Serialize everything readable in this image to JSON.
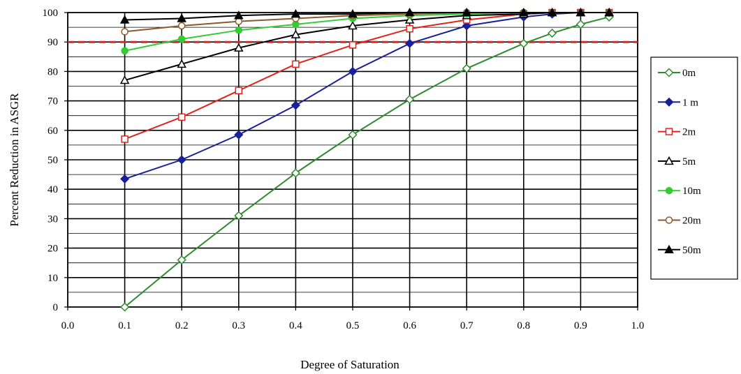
{
  "chart_data": {
    "type": "line",
    "title": "",
    "xlabel": "Degree of Saturation",
    "ylabel": "Percent Reduction in ASGR",
    "xlim": [
      0.0,
      1.0
    ],
    "ylim": [
      0,
      100
    ],
    "x_ticks": [
      "0.0",
      "0.1",
      "0.2",
      "0.3",
      "0.4",
      "0.5",
      "0.6",
      "0.7",
      "0.8",
      "0.9",
      "1.0"
    ],
    "y_ticks": [
      "0",
      "10",
      "20",
      "30",
      "40",
      "50",
      "60",
      "70",
      "80",
      "90",
      "100"
    ],
    "grid": "horizontal major and minor, vertical major",
    "legend_position": "right",
    "reference_line": {
      "y": 90,
      "color": "#e0241b",
      "style": "dashed"
    },
    "series": [
      {
        "name": "0m",
        "color": "#2e8b2e",
        "marker": "diamond-open",
        "x": [
          0.1,
          0.2,
          0.3,
          0.4,
          0.5,
          0.6,
          0.7,
          0.8,
          0.85,
          0.9,
          0.95
        ],
        "y": [
          0,
          16,
          31,
          45.5,
          58.5,
          70.5,
          81,
          89.5,
          93,
          96,
          98.5
        ]
      },
      {
        "name": "1 m",
        "color": "#1a1f9a",
        "marker": "diamond-filled",
        "x": [
          0.1,
          0.2,
          0.3,
          0.4,
          0.5,
          0.6,
          0.7,
          0.8,
          0.85,
          0.9,
          0.95
        ],
        "y": [
          43.5,
          50,
          58.5,
          68.5,
          80,
          89.5,
          95.5,
          98.5,
          99.5,
          100,
          100
        ]
      },
      {
        "name": "2m",
        "color": "#e0241b",
        "marker": "square-open",
        "x": [
          0.1,
          0.2,
          0.3,
          0.4,
          0.5,
          0.6,
          0.7,
          0.8,
          0.85,
          0.9,
          0.95
        ],
        "y": [
          57,
          64.5,
          73.5,
          82.5,
          89,
          94.5,
          97.5,
          99.5,
          100,
          100,
          100
        ]
      },
      {
        "name": "5m",
        "color": "#000000",
        "marker": "triangle-open",
        "x": [
          0.1,
          0.2,
          0.3,
          0.4,
          0.5,
          0.6,
          0.7,
          0.8,
          0.85,
          0.9,
          0.95
        ],
        "y": [
          77,
          82.5,
          88,
          92.5,
          95.5,
          97.5,
          99,
          99.5,
          100,
          100,
          100
        ]
      },
      {
        "name": "10m",
        "color": "#33cc33",
        "marker": "circle-filled",
        "x": [
          0.1,
          0.2,
          0.3,
          0.4,
          0.5,
          0.6,
          0.7,
          0.8,
          0.85,
          0.9,
          0.95
        ],
        "y": [
          87,
          91,
          94,
          96,
          98,
          99,
          99.5,
          100,
          100,
          100,
          100
        ]
      },
      {
        "name": "20m",
        "color": "#8b5a2b",
        "marker": "circle-open",
        "x": [
          0.1,
          0.2,
          0.3,
          0.4,
          0.5,
          0.6,
          0.7,
          0.8,
          0.85,
          0.9,
          0.95
        ],
        "y": [
          93.5,
          95.5,
          97,
          98,
          99,
          99.5,
          100,
          100,
          100,
          100,
          100
        ]
      },
      {
        "name": "50m",
        "color": "#000000",
        "marker": "triangle-filled",
        "x": [
          0.1,
          0.2,
          0.3,
          0.4,
          0.5,
          0.6,
          0.7,
          0.8,
          0.85,
          0.9,
          0.95
        ],
        "y": [
          97.5,
          98,
          99,
          99.5,
          99.5,
          100,
          100,
          100,
          100,
          100,
          100
        ]
      }
    ]
  }
}
